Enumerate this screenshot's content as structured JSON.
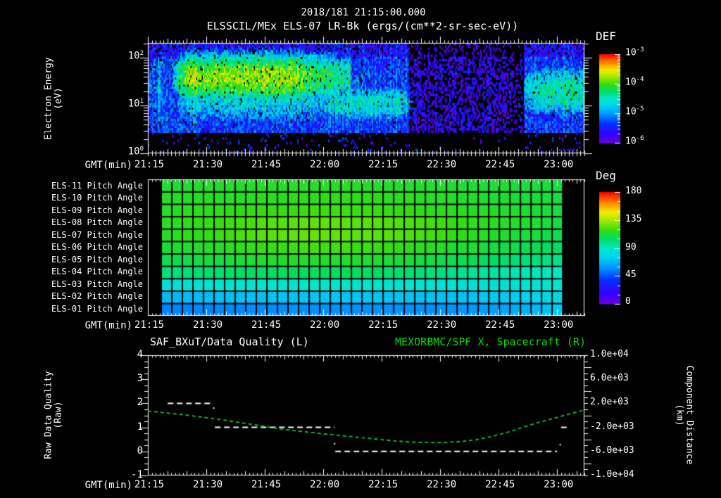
{
  "header": {
    "timestamp": "2018/181 21:15:00.000",
    "title": "ELSSCIL/MEx ELS-07 LR-Bk  (ergs/(cm**2-sr-sec-eV))"
  },
  "time_axis": {
    "label": "GMT(min)",
    "tick_labels": [
      "21:15",
      "21:30",
      "21:45",
      "22:00",
      "22:15",
      "22:30",
      "22:45",
      "23:00"
    ],
    "start_min": 0,
    "end_min": 112,
    "major_step_min": 15,
    "medium_step_min": 5,
    "minor_step_min": 1
  },
  "palette": {
    "background": "#000000",
    "foreground": "#ffffff",
    "title_green": "#00dd00",
    "curve_green": "#00cc33",
    "colormap_stops": [
      [
        0,
        "#6a00e0"
      ],
      [
        0.1,
        "#3300ff"
      ],
      [
        0.22,
        "#0033ff"
      ],
      [
        0.33,
        "#0099ff"
      ],
      [
        0.42,
        "#00d4f0"
      ],
      [
        0.5,
        "#00e8c8"
      ],
      [
        0.58,
        "#00dd66"
      ],
      [
        0.66,
        "#33dd11"
      ],
      [
        0.74,
        "#99e800"
      ],
      [
        0.82,
        "#eeee00"
      ],
      [
        0.9,
        "#ff9100"
      ],
      [
        1,
        "#ff0000"
      ]
    ]
  },
  "chart_data": [
    {
      "id": "electron-energy-spectrogram",
      "type": "heatmap",
      "title": "ELSSCIL/MEx ELS-07 LR-Bk  (ergs/(cm**2-sr-sec-eV))",
      "xlabel": "GMT(min)",
      "x_tick_labels": [
        "21:15",
        "21:30",
        "21:45",
        "22:00",
        "22:15",
        "22:30",
        "22:45",
        "23:00"
      ],
      "ylabel_line1": "Electron Energy",
      "ylabel_line2": "(eV)",
      "y_scale": "log",
      "y_range_ev": [
        1,
        204
      ],
      "ytick_labels": [
        {
          "base": "10",
          "exp": "2"
        },
        {
          "base": "10",
          "exp": "1"
        },
        {
          "base": "10",
          "exp": "0"
        }
      ],
      "value_scale_label": "DEF",
      "value_units": "ergs/(cm**2-sr-sec-eV)",
      "value_range_log10": [
        -6,
        -3
      ],
      "colorbar_tick_labels": [
        {
          "base": "10",
          "exp": "-3"
        },
        {
          "base": "10",
          "exp": "-4"
        },
        {
          "base": "10",
          "exp": "-5"
        },
        {
          "base": "10",
          "exp": "-6"
        }
      ],
      "background_log10": -5.35,
      "features": [
        {
          "name": "startup-streaks",
          "t_min": [
            0,
            3.2
          ],
          "logE_center": 1.3,
          "logE_sigma": 0.8,
          "peak_log10_def": -4.9,
          "style": "columnar"
        },
        {
          "name": "main-electron-band",
          "t_min": [
            6.5,
            52
          ],
          "logE_center": 1.58,
          "logE_sigma": 0.34,
          "peak_log10_def": -3.82
        },
        {
          "name": "band-skirt",
          "t_min": [
            6,
            56
          ],
          "logE_center": 1.3,
          "logE_sigma": 0.55,
          "peak_log10_def": -4.6
        },
        {
          "name": "low-energy-tail",
          "t_min": [
            45,
            68
          ],
          "logE_center": 1.05,
          "logE_sigma": 0.3,
          "peak_log10_def": -4.6
        },
        {
          "name": "quiet-dark-interval",
          "t_min": [
            67,
            96.5
          ],
          "background_log10": -5.8,
          "dropout_prob": 0.3
        },
        {
          "name": "right-cyan-region",
          "t_min": [
            96.5,
            112
          ],
          "logE_center": 1.3,
          "logE_sigma": 0.4,
          "peak_log10_def": -4.45
        }
      ]
    },
    {
      "id": "pitch-angle-panel",
      "type": "heatmap",
      "xlabel": "GMT(min)",
      "x_tick_labels": [
        "21:15",
        "21:30",
        "21:45",
        "22:00",
        "22:15",
        "22:30",
        "22:45",
        "23:00"
      ],
      "value_scale_label": "Deg",
      "value_range_deg": [
        0,
        180
      ],
      "colorbar_tick_labels": [
        "180",
        "135",
        "90",
        "45",
        "0"
      ],
      "t_start_min": 3.4,
      "t_end_min": 106.4,
      "n_time_bins": 38,
      "sample_times_min": [
        4,
        17,
        30,
        43,
        56,
        69,
        82,
        95,
        106
      ],
      "rows": [
        {
          "label": "ELS-11 Pitch Angle",
          "values_deg": [
            113,
            114,
            115,
            115,
            115,
            114,
            113,
            112,
            111
          ]
        },
        {
          "label": "ELS-10 Pitch Angle",
          "values_deg": [
            114,
            115,
            116,
            117,
            117,
            116,
            114,
            112,
            111
          ]
        },
        {
          "label": "ELS-09 Pitch Angle",
          "values_deg": [
            115,
            117,
            119,
            120,
            120,
            118,
            116,
            113,
            111
          ]
        },
        {
          "label": "ELS-08 Pitch Angle",
          "values_deg": [
            116,
            119,
            123,
            125,
            124,
            122,
            118,
            114,
            111
          ]
        },
        {
          "label": "ELS-07 Pitch Angle",
          "values_deg": [
            115,
            119,
            124,
            126,
            125,
            122,
            117,
            112,
            108
          ]
        },
        {
          "label": "ELS-06 Pitch Angle",
          "values_deg": [
            112,
            115,
            119,
            121,
            120,
            117,
            113,
            108,
            104
          ]
        },
        {
          "label": "ELS-05 Pitch Angle",
          "values_deg": [
            108,
            111,
            114,
            115,
            114,
            111,
            107,
            102,
            98
          ]
        },
        {
          "label": "ELS-04 Pitch Angle",
          "values_deg": [
            100,
            103,
            105,
            106,
            105,
            102,
            98,
            93,
            90
          ]
        },
        {
          "label": "ELS-03 Pitch Angle",
          "values_deg": [
            84,
            86,
            88,
            89,
            88,
            87,
            85,
            85,
            88
          ]
        },
        {
          "label": "ELS-02 Pitch Angle",
          "values_deg": [
            68,
            70,
            71,
            72,
            72,
            71,
            71,
            74,
            81
          ]
        },
        {
          "label": "ELS-01 Pitch Angle",
          "values_deg": [
            55,
            56,
            57,
            58,
            58,
            58,
            59,
            64,
            74
          ]
        }
      ]
    },
    {
      "id": "quality-distance-plot",
      "type": "line",
      "title_left": "SAF_BXuT/Data Quality (L)",
      "title_right": "MEXORBMC/SPF X, Spacecraft (R)",
      "xlabel": "GMT(min)",
      "x_tick_labels": [
        "21:15",
        "21:30",
        "21:45",
        "22:00",
        "22:15",
        "22:30",
        "22:45",
        "23:00"
      ],
      "left_axis": {
        "label_line1": "Raw Data Quality",
        "label_line2": "(Raw)",
        "range": [
          -1,
          4
        ],
        "tick_labels": [
          "4",
          "3",
          "2",
          "1",
          "0",
          "-1"
        ]
      },
      "right_axis": {
        "label_line1": "Component Distance",
        "label_line2": "(km)",
        "range": [
          -10000,
          10000
        ],
        "tick_labels": [
          "1.0e+04",
          "6.0e+03",
          "2.0e+03",
          "-2.0e+03",
          "-6.0e+03",
          "-1.0e+04"
        ]
      },
      "series": [
        {
          "name": "SAF_BXuT/Data Quality",
          "axis": "left",
          "color": "#ffffff",
          "line_style": "dashed",
          "segments": [
            {
              "value": 2,
              "t_min": [
                5.1,
                16.8
              ]
            },
            {
              "value": 1,
              "t_min": [
                17.2,
                47.9
              ]
            },
            {
              "value": 0,
              "t_min": [
                48.1,
                105.0
              ]
            },
            {
              "value": 1,
              "t_min": [
                106.0,
                108.2
              ]
            }
          ],
          "transition_dots": [
            {
              "t_min": 16.9,
              "value": 1.8
            },
            {
              "t_min": 47.9,
              "value": 0.32
            },
            {
              "t_min": 105.8,
              "value": 0.28
            }
          ]
        },
        {
          "name": "MEXORBMC/SPF X, Spacecraft",
          "axis": "right",
          "color": "#00cc33",
          "line_style": "dashed",
          "points": [
            [
              0,
              725
            ],
            [
              5,
              390
            ],
            [
              10,
              30
            ],
            [
              15,
              -390
            ],
            [
              20,
              -840
            ],
            [
              25,
              -1330
            ],
            [
              30,
              -1840
            ],
            [
              34,
              -2260
            ],
            [
              37,
              -2500
            ],
            [
              40,
              -2720
            ],
            [
              45,
              -3060
            ],
            [
              50,
              -3400
            ],
            [
              55,
              -3720
            ],
            [
              60,
              -4040
            ],
            [
              64,
              -4300
            ],
            [
              68,
              -4460
            ],
            [
              72,
              -4530
            ],
            [
              76,
              -4510
            ],
            [
              80,
              -4350
            ],
            [
              84,
              -4100
            ],
            [
              88,
              -3550
            ],
            [
              92,
              -2870
            ],
            [
              96,
              -2020
            ],
            [
              100,
              -1220
            ],
            [
              103,
              -700
            ],
            [
              105.5,
              -250
            ],
            [
              108,
              200
            ],
            [
              110,
              560
            ],
            [
              112,
              900
            ]
          ]
        }
      ]
    }
  ]
}
